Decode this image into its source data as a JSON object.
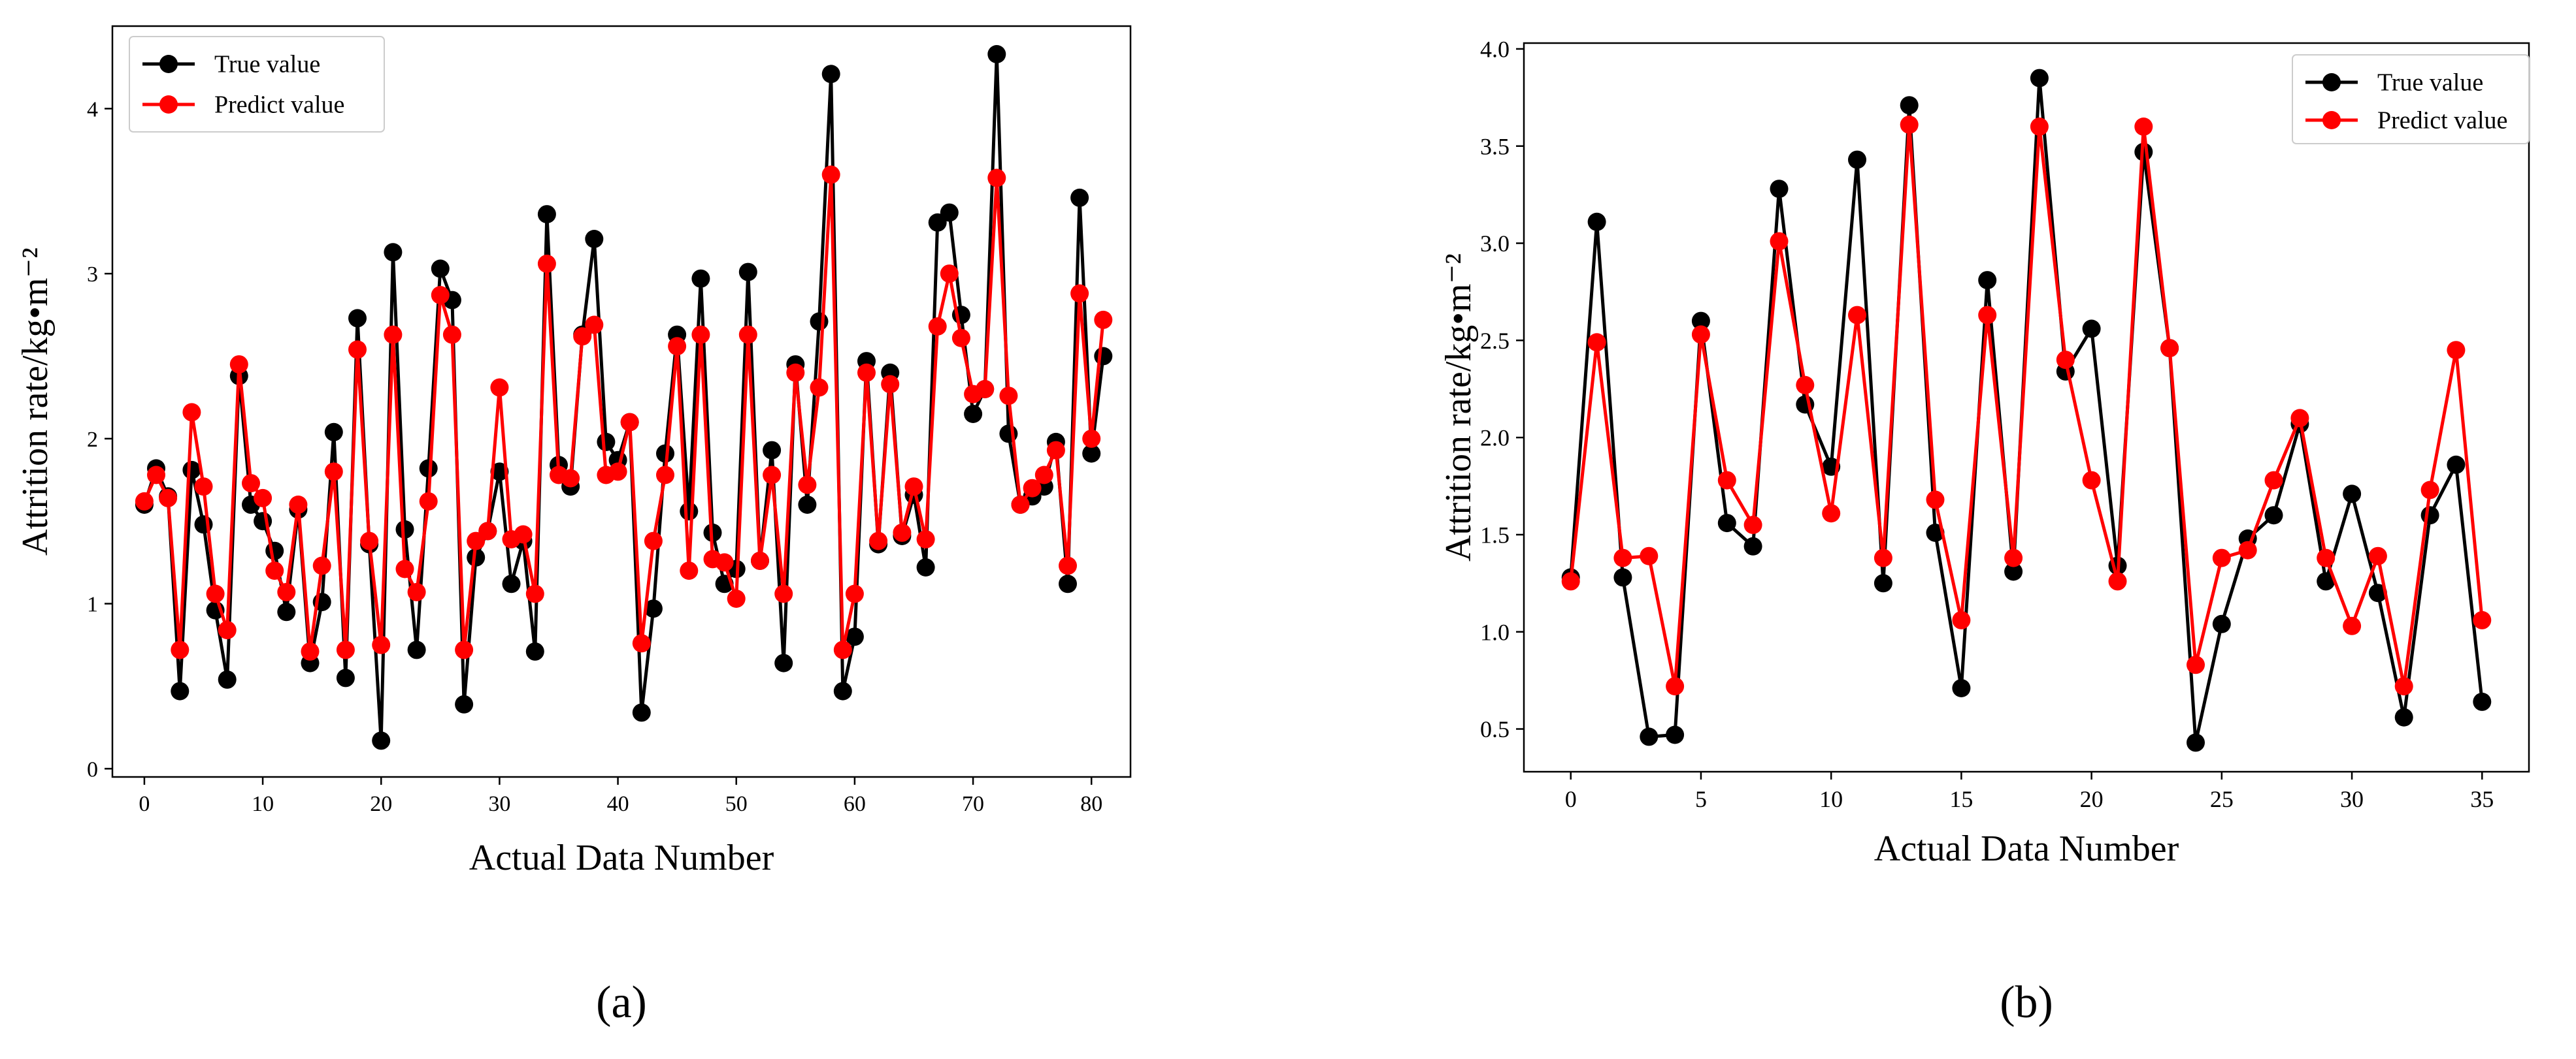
{
  "chart_data": [
    {
      "type": "line",
      "panel_label": "(a)",
      "xlabel": "Actual Data Number",
      "ylabel": "Attrition rate/kg•m⁻²",
      "xlim": [
        -2.7,
        83.3
      ],
      "ylim": [
        -0.05,
        4.5
      ],
      "xticks": [
        0,
        10,
        20,
        30,
        40,
        50,
        60,
        70,
        80
      ],
      "yticks": [
        0,
        1,
        2,
        3,
        4
      ],
      "legend_position": "top-left",
      "series": [
        {
          "name": "True value",
          "color": "#000000",
          "values": [
            1.6,
            1.82,
            1.65,
            0.47,
            1.81,
            1.48,
            0.96,
            0.54,
            2.38,
            1.6,
            1.5,
            1.32,
            0.95,
            1.57,
            0.64,
            1.01,
            2.04,
            0.55,
            2.73,
            1.36,
            0.17,
            3.13,
            1.45,
            0.72,
            1.82,
            3.03,
            2.84,
            0.39,
            1.28,
            1.44,
            1.8,
            1.12,
            1.38,
            0.71,
            3.36,
            1.84,
            1.71,
            2.63,
            3.21,
            1.98,
            1.87,
            2.1,
            0.34,
            0.97,
            1.91,
            2.63,
            1.56,
            2.97,
            1.43,
            1.12,
            1.21,
            3.01,
            1.26,
            1.93,
            0.64,
            2.45,
            1.6,
            2.71,
            4.21,
            0.47,
            0.8,
            2.47,
            1.36,
            2.4,
            1.41,
            1.66,
            1.22,
            3.31,
            3.37,
            2.75,
            2.15,
            2.3,
            4.33,
            2.03,
            1.6,
            1.65,
            1.71,
            1.98,
            1.12,
            3.46,
            1.91,
            2.5
          ]
        },
        {
          "name": "Predict value",
          "color": "#ff0000",
          "values": [
            1.62,
            1.78,
            1.64,
            0.72,
            2.16,
            1.71,
            1.06,
            0.84,
            2.45,
            1.73,
            1.64,
            1.2,
            1.07,
            1.6,
            0.71,
            1.23,
            1.8,
            0.72,
            2.54,
            1.38,
            0.75,
            2.63,
            1.21,
            1.07,
            1.62,
            2.87,
            2.63,
            0.72,
            1.38,
            1.44,
            2.31,
            1.39,
            1.42,
            1.06,
            3.06,
            1.78,
            1.76,
            2.62,
            2.69,
            1.78,
            1.8,
            2.1,
            0.76,
            1.38,
            1.78,
            2.56,
            1.2,
            2.63,
            1.27,
            1.25,
            1.03,
            2.63,
            1.26,
            1.78,
            1.06,
            2.4,
            1.72,
            2.31,
            3.6,
            0.72,
            1.06,
            2.4,
            1.38,
            2.33,
            1.43,
            1.71,
            1.39,
            2.68,
            3.0,
            2.61,
            2.27,
            2.3,
            3.58,
            2.26,
            1.6,
            1.7,
            1.78,
            1.93,
            1.23,
            2.88,
            2.0,
            2.72
          ]
        }
      ]
    },
    {
      "type": "line",
      "panel_label": "(b)",
      "xlabel": "Actual Data Number",
      "ylabel": "Attrition rate/kg•m⁻²",
      "xlim": [
        -1.8,
        36.8
      ],
      "ylim": [
        0.28,
        4.03
      ],
      "xticks": [
        0,
        5,
        10,
        15,
        20,
        25,
        30,
        35
      ],
      "yticks": [
        0.5,
        1.0,
        1.5,
        2.0,
        2.5,
        3.0,
        3.5,
        4.0
      ],
      "ytick_labels": [
        "0.5",
        "1.0",
        "1.5",
        "2.0",
        "2.5",
        "3.0",
        "3.5",
        "4.0"
      ],
      "legend_position": "top-right",
      "series": [
        {
          "name": "True value",
          "color": "#000000",
          "values": [
            1.28,
            3.11,
            1.28,
            0.46,
            0.47,
            2.6,
            1.56,
            1.44,
            3.28,
            2.17,
            1.85,
            3.43,
            1.25,
            3.71,
            1.51,
            0.71,
            2.81,
            1.31,
            3.85,
            2.34,
            2.56,
            1.34,
            3.47,
            2.46,
            0.43,
            1.04,
            1.48,
            1.6,
            2.07,
            1.26,
            1.71,
            1.2,
            0.56,
            1.6,
            1.86,
            0.64
          ]
        },
        {
          "name": "Predict value",
          "color": "#ff0000",
          "values": [
            1.26,
            2.49,
            1.38,
            1.39,
            0.72,
            2.53,
            1.78,
            1.55,
            3.01,
            2.27,
            1.61,
            2.63,
            1.38,
            3.61,
            1.68,
            1.06,
            2.63,
            1.38,
            3.6,
            2.4,
            1.78,
            1.26,
            3.6,
            2.46,
            0.83,
            1.38,
            1.42,
            1.78,
            2.1,
            1.38,
            1.03,
            1.39,
            0.72,
            1.73,
            2.45,
            1.06
          ]
        }
      ]
    }
  ]
}
